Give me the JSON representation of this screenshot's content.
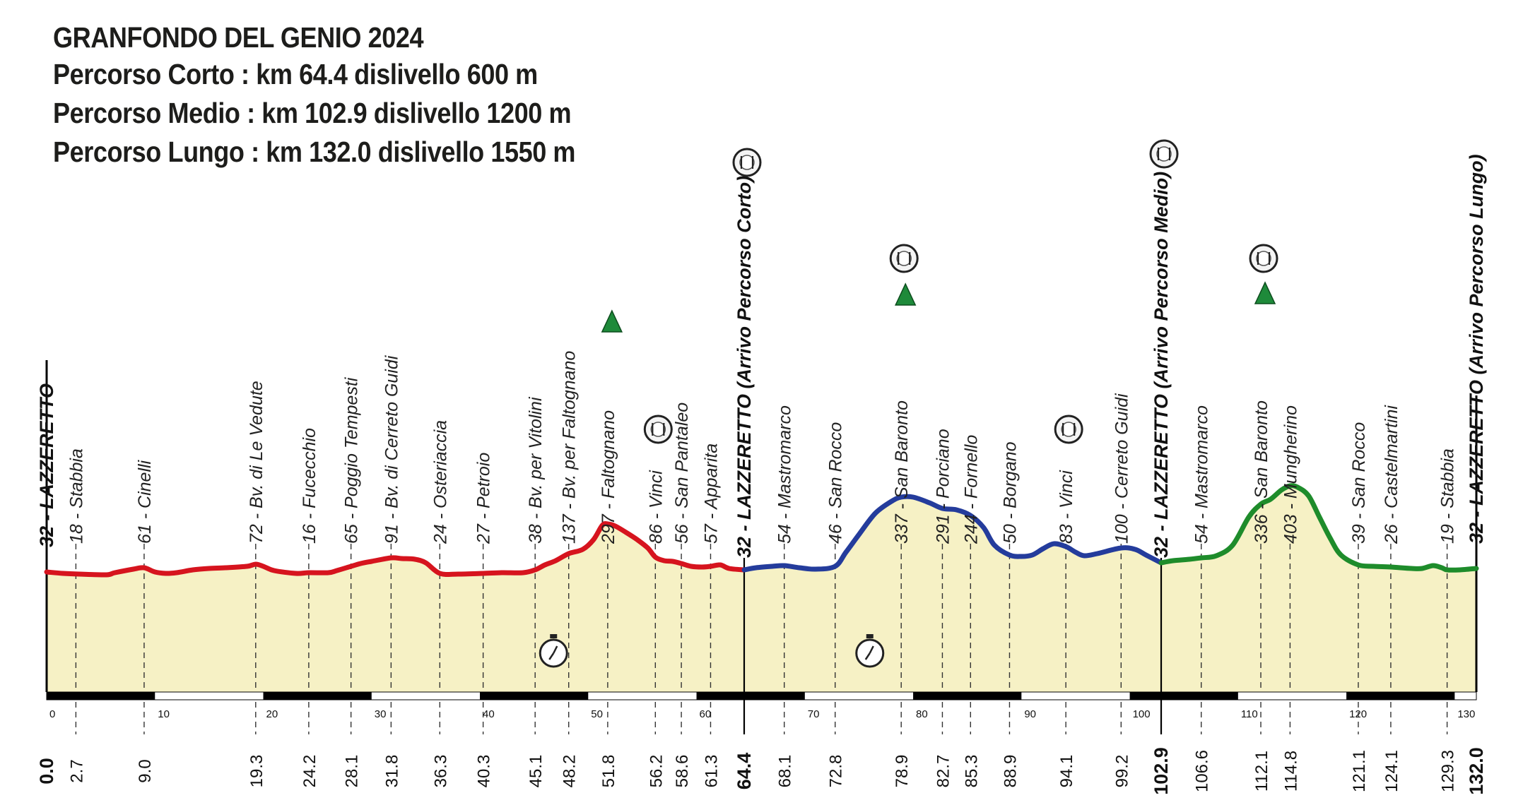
{
  "header": {
    "title": "GRANFONDO DEL GENIO 2024",
    "routes": [
      "Percorso Corto :  km 64.4 dislivello 600 m",
      "Percorso Medio : km 102.9 dislivello 1200 m",
      "Percorso Lungo : km 132.0 dislivello 1550 m"
    ]
  },
  "chart_data": {
    "type": "area",
    "title": "GRANFONDO DEL GENIO 2024",
    "xlabel": "",
    "ylabel": "",
    "xlim": [
      0,
      132.0
    ],
    "scale_ticks": [
      0,
      10,
      20,
      30,
      40,
      50,
      60,
      70,
      80,
      90,
      100,
      110,
      120,
      130
    ],
    "colors": {
      "segment1": "#d6141e",
      "segment2": "#243c9c",
      "segment3": "#1e8c2b",
      "fill": "#f6f1c5",
      "scale": "#000000"
    },
    "profile": [
      [
        0,
        32
      ],
      [
        1.5,
        30
      ],
      [
        3,
        29
      ],
      [
        5.5,
        28
      ],
      [
        6.3,
        31
      ],
      [
        8,
        36
      ],
      [
        9,
        38
      ],
      [
        10,
        32
      ],
      [
        11,
        30
      ],
      [
        12,
        31
      ],
      [
        13.5,
        35
      ],
      [
        15,
        37
      ],
      [
        16.5,
        38
      ],
      [
        18.5,
        40
      ],
      [
        19.3,
        43
      ],
      [
        20,
        40
      ],
      [
        21,
        34
      ],
      [
        23,
        30
      ],
      [
        24.2,
        31
      ],
      [
        26,
        31
      ],
      [
        26.8,
        34
      ],
      [
        28.1,
        40
      ],
      [
        29,
        44
      ],
      [
        30,
        47
      ],
      [
        31.8,
        52
      ],
      [
        32.8,
        51
      ],
      [
        34,
        50
      ],
      [
        35,
        45
      ],
      [
        36.3,
        30
      ],
      [
        38,
        29
      ],
      [
        40.3,
        30
      ],
      [
        42,
        31
      ],
      [
        44,
        31
      ],
      [
        45.1,
        35
      ],
      [
        46,
        42
      ],
      [
        47,
        48
      ],
      [
        48.2,
        58
      ],
      [
        49.5,
        64
      ],
      [
        50.5,
        78
      ],
      [
        51.3,
        98
      ],
      [
        51.8,
        100
      ],
      [
        52.5,
        97
      ],
      [
        53.5,
        88
      ],
      [
        54.5,
        78
      ],
      [
        55.5,
        66
      ],
      [
        56.2,
        53
      ],
      [
        57,
        48
      ],
      [
        57.8,
        47
      ],
      [
        58.6,
        44
      ],
      [
        59.5,
        40
      ],
      [
        60.5,
        39
      ],
      [
        61.3,
        40
      ],
      [
        62.2,
        42
      ],
      [
        63,
        37
      ],
      [
        64.4,
        35
      ],
      [
        65.5,
        38
      ],
      [
        67,
        40
      ],
      [
        68.1,
        41
      ],
      [
        69.5,
        38
      ],
      [
        71,
        36
      ],
      [
        72.8,
        40
      ],
      [
        73.8,
        60
      ],
      [
        75,
        85
      ],
      [
        76.5,
        115
      ],
      [
        78,
        132
      ],
      [
        78.9,
        138
      ],
      [
        80,
        138
      ],
      [
        81.5,
        130
      ],
      [
        82.7,
        122
      ],
      [
        84,
        120
      ],
      [
        85.3,
        112
      ],
      [
        86.5,
        95
      ],
      [
        87.5,
        70
      ],
      [
        88.9,
        56
      ],
      [
        90,
        54
      ],
      [
        91,
        56
      ],
      [
        92,
        65
      ],
      [
        93,
        72
      ],
      [
        94.1,
        68
      ],
      [
        95,
        60
      ],
      [
        95.8,
        55
      ],
      [
        97,
        58
      ],
      [
        99.2,
        66
      ],
      [
        100.5,
        64
      ],
      [
        101.5,
        56
      ],
      [
        102.9,
        45
      ],
      [
        104,
        48
      ],
      [
        105.5,
        50
      ],
      [
        106.6,
        52
      ],
      [
        108,
        55
      ],
      [
        109.5,
        70
      ],
      [
        111,
        110
      ],
      [
        112.1,
        128
      ],
      [
        113,
        135
      ],
      [
        114,
        148
      ],
      [
        114.8,
        154
      ],
      [
        115.5,
        152
      ],
      [
        116.5,
        140
      ],
      [
        117.5,
        110
      ],
      [
        118.5,
        80
      ],
      [
        119.5,
        56
      ],
      [
        121.1,
        42
      ],
      [
        122.5,
        40
      ],
      [
        124.1,
        39
      ],
      [
        126,
        37
      ],
      [
        127,
        37
      ],
      [
        128,
        41
      ],
      [
        128.8,
        38
      ],
      [
        129.3,
        35
      ],
      [
        130.5,
        35
      ],
      [
        132,
        37
      ]
    ],
    "segments": [
      {
        "name": "Percorso Corto",
        "x_range": [
          0,
          64.4
        ]
      },
      {
        "name": "Percorso Medio",
        "x_range": [
          64.4,
          102.9
        ]
      },
      {
        "name": "Percorso Lungo",
        "x_range": [
          102.9,
          132.0
        ]
      }
    ],
    "waypoints": [
      {
        "km": "0.0",
        "x": 0,
        "label": "32 - LAZZERETTO",
        "bold": true,
        "major": true
      },
      {
        "km": "2.7",
        "x": 2.7,
        "label": "18 - Stabbia"
      },
      {
        "km": "9.0",
        "x": 9.0,
        "label": "61 - Cinelli"
      },
      {
        "km": "19.3",
        "x": 19.3,
        "label": "72 - Bv. di Le Vedute"
      },
      {
        "km": "24.2",
        "x": 24.2,
        "label": "16 - Fucecchio"
      },
      {
        "km": "28.1",
        "x": 28.1,
        "label": "65 - Poggio Tempesti"
      },
      {
        "km": "31.8",
        "x": 31.8,
        "label": "91 - Bv. di Cerreto Guidi"
      },
      {
        "km": "36.3",
        "x": 36.3,
        "label": "24 - Osteriaccia"
      },
      {
        "km": "40.3",
        "x": 40.3,
        "label": "27 - Petroio"
      },
      {
        "km": "45.1",
        "x": 45.1,
        "label": "38 - Bv. per Vitolini"
      },
      {
        "km": "48.2",
        "x": 48.2,
        "label": "137 - Bv. per Faltognano"
      },
      {
        "km": "51.8",
        "x": 51.8,
        "label": "297 - Faltognano"
      },
      {
        "km": "56.2",
        "x": 56.2,
        "label": "86 - Vinci"
      },
      {
        "km": "58.6",
        "x": 58.6,
        "label": "56 - San Pantaleo"
      },
      {
        "km": "61.3",
        "x": 61.3,
        "label": "57 - Apparita"
      },
      {
        "km": "64.4",
        "x": 64.4,
        "label": "32 - LAZZERETTO (Arrivo Percorso Corto)",
        "bold": true,
        "major": true
      },
      {
        "km": "68.1",
        "x": 68.1,
        "label": "54 - Mastromarco"
      },
      {
        "km": "72.8",
        "x": 72.8,
        "label": "46 - San Rocco"
      },
      {
        "km": "78.9",
        "x": 78.9,
        "label": "337 - San Baronto"
      },
      {
        "km": "82.7",
        "x": 82.7,
        "label": "291 - Porciano"
      },
      {
        "km": "85.3",
        "x": 85.3,
        "label": "244 - Fornello"
      },
      {
        "km": "88.9",
        "x": 88.9,
        "label": "50 - Borgano"
      },
      {
        "km": "94.1",
        "x": 94.1,
        "label": "83 - Vinci"
      },
      {
        "km": "99.2",
        "x": 99.2,
        "label": "100 - Cerreto Guidi"
      },
      {
        "km": "102.9",
        "x": 102.9,
        "label": "32 - LAZZERETTO (Arrivo Percorso Medio)",
        "bold": true,
        "major": true
      },
      {
        "km": "106.6",
        "x": 106.6,
        "label": "54 - Mastromarco"
      },
      {
        "km": "112.1",
        "x": 112.1,
        "label": "336 - San Baronto"
      },
      {
        "km": "114.8",
        "x": 114.8,
        "label": "403 - Mungherino"
      },
      {
        "km": "121.1",
        "x": 121.1,
        "label": "39 - San Rocco"
      },
      {
        "km": "124.1",
        "x": 124.1,
        "label": "26 - Castelmartini"
      },
      {
        "km": "129.3",
        "x": 129.3,
        "label": "19 - Stabbia"
      },
      {
        "km": "132.0",
        "x": 132.0,
        "label": "32 - LAZZERETTO (Arrivo Percorso Lungo)",
        "bold": true,
        "major": true
      }
    ],
    "icons": [
      {
        "type": "food-icon",
        "x": 56.2
      },
      {
        "type": "food-icon",
        "x": 64.4
      },
      {
        "type": "food-icon",
        "x": 78.9
      },
      {
        "type": "food-icon",
        "x": 94.1
      },
      {
        "type": "food-icon",
        "x": 102.9
      },
      {
        "type": "food-icon",
        "x": 112.1
      },
      {
        "type": "summit-icon",
        "x": 51.8
      },
      {
        "type": "summit-icon",
        "x": 78.9
      },
      {
        "type": "summit-icon",
        "x": 112.1
      },
      {
        "type": "timer-icon",
        "x": 46.8
      },
      {
        "type": "timer-icon",
        "x": 76.0
      }
    ]
  }
}
